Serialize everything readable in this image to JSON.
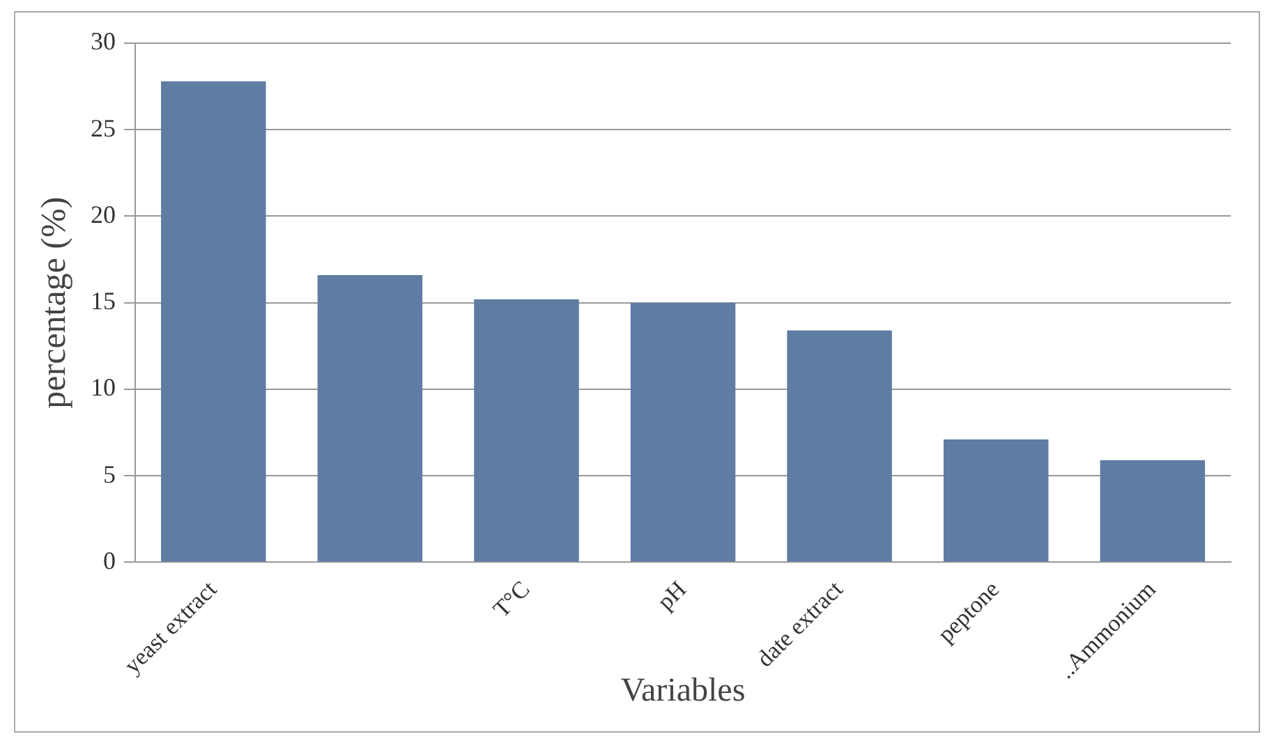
{
  "chart_data": {
    "type": "bar",
    "xlabel": "Variables",
    "ylabel": "percentage (%)",
    "categories": [
      "yeast extract",
      null,
      "T°C",
      "pH",
      "date extract",
      "peptone",
      "..Ammonium"
    ],
    "values": [
      27.8,
      16.6,
      15.2,
      15.0,
      13.4,
      7.1,
      5.9
    ],
    "color": "#5f7ca3",
    "ylim": [
      0,
      30
    ],
    "yticks": [
      0,
      5,
      10,
      15,
      20,
      25,
      30
    ],
    "grid": "y",
    "legend": false
  }
}
